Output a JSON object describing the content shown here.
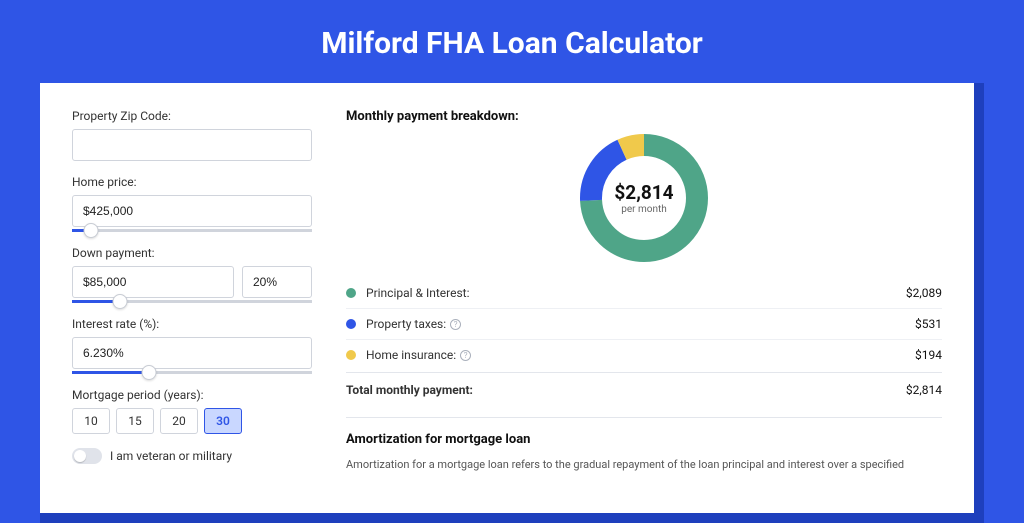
{
  "title": "Milford FHA Loan Calculator",
  "colors": {
    "bg": "#2f55e6",
    "shadow": "#1e3fbd"
  },
  "form": {
    "zip_label": "Property Zip Code:",
    "zip_value": "",
    "home_price_label": "Home price:",
    "home_price_value": "$425,000",
    "home_price_slider_pct": 8,
    "down_payment_label": "Down payment:",
    "down_payment_value": "$85,000",
    "down_payment_pct_value": "20%",
    "down_payment_slider_pct": 20,
    "interest_label": "Interest rate (%):",
    "interest_value": "6.230%",
    "interest_slider_pct": 32,
    "period_label": "Mortgage period (years):",
    "period_options": [
      "10",
      "15",
      "20",
      "30"
    ],
    "period_selected": "30",
    "veteran_label": "I am veteran or military",
    "veteran_on": false
  },
  "breakdown": {
    "title": "Monthly payment breakdown:",
    "donut": {
      "amount": "$2,814",
      "sub": "per month",
      "slices": [
        {
          "color": "#4fa588",
          "pct": 74.2
        },
        {
          "color": "#2f55e6",
          "pct": 18.9
        },
        {
          "color": "#f0c94b",
          "pct": 6.9
        }
      ],
      "size": 128,
      "ring_width": 22
    },
    "rows": [
      {
        "color": "#4fa588",
        "label": "Principal & Interest:",
        "info": false,
        "value": "$2,089"
      },
      {
        "color": "#2f55e6",
        "label": "Property taxes:",
        "info": true,
        "value": "$531"
      },
      {
        "color": "#f0c94b",
        "label": "Home insurance:",
        "info": true,
        "value": "$194"
      }
    ],
    "total_label": "Total monthly payment:",
    "total_value": "$2,814"
  },
  "amort": {
    "title": "Amortization for mortgage loan",
    "text": "Amortization for a mortgage loan refers to the gradual repayment of the loan principal and interest over a specified"
  }
}
